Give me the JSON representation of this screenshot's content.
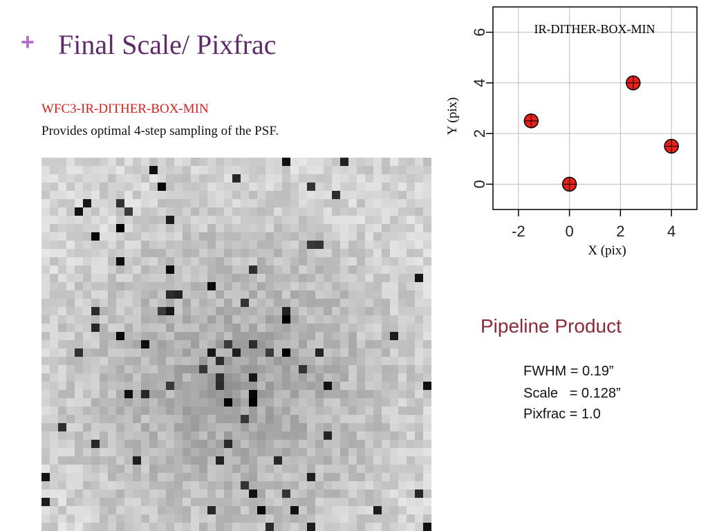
{
  "bullet": "+",
  "title": "Final Scale/ Pixfrac",
  "subtitle": "WFC3-IR-DITHER-BOX-MIN",
  "description": "Provides optimal 4-step sampling of the PSF.",
  "product": {
    "heading": "Pipeline Product",
    "lines": [
      "FWHM = 0.19”",
      "Scale   = 0.128”",
      "Pixfrac = 1.0"
    ]
  },
  "chart_data": {
    "type": "scatter",
    "title": "IR-DITHER-BOX-MIN",
    "x_label": "X (pix)",
    "y_label": "Y (pix)",
    "x": [
      -1.5,
      0,
      2.5,
      4
    ],
    "values": [
      2.5,
      0,
      4,
      1.5
    ],
    "color": "#e8201c",
    "xlim": [
      -3,
      5
    ],
    "ylim": [
      -1,
      7
    ],
    "xticks": [
      -2,
      0,
      2,
      4
    ],
    "yticks": [
      0,
      2,
      4,
      6
    ],
    "grid": true
  }
}
